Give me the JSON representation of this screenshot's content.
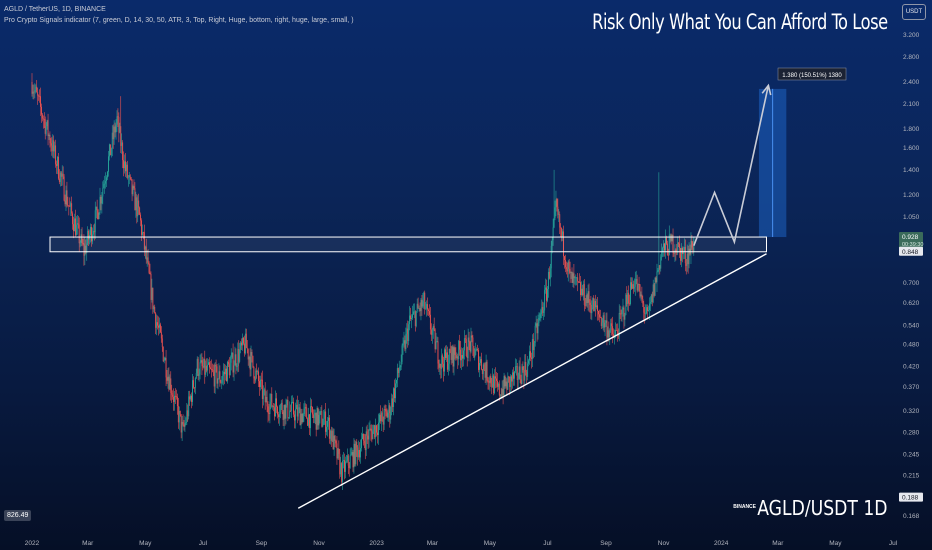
{
  "legend": {
    "symbol_line": "AGLD / TetherUS, 1D, BINANCE",
    "indicator_line": "Pro Crypto Signals indicator (7, green, D, 14, 30, 50, ATR, 3, Top, Right, Huge, bottom, right, huge, large, small, )"
  },
  "caption": "Risk Only What You Can Afford To Lose",
  "currency_button": "USDT",
  "exchange": "BINANCE",
  "symbol_tag": "AGLD/USDT 1D",
  "volume_badge": "826.49",
  "colors": {
    "up": "#26a69a",
    "down": "#ef5350",
    "trendline": "#ffffff",
    "resistance_box": "#ffffff",
    "projection": "#c9ccd6",
    "target_zone": "#1e6fd9"
  },
  "chart_data": {
    "type": "candlestick",
    "scale": "log",
    "y_ticks": [
      3.2,
      2.8,
      2.4,
      2.1,
      1.8,
      1.6,
      1.4,
      1.2,
      1.05,
      0.928,
      0.848,
      0.7,
      0.62,
      0.54,
      0.48,
      0.42,
      0.37,
      0.32,
      0.28,
      0.245,
      0.215,
      0.188,
      0.168
    ],
    "y_tick_labels": [
      "3.200",
      "2.800",
      "2.400",
      "2.100",
      "1.800",
      "1.600",
      "1.400",
      "1.200",
      "1.050",
      "0.928",
      "0.848",
      "0.700",
      "0.620",
      "0.540",
      "0.480",
      "0.420",
      "0.370",
      "0.320",
      "0.280",
      "0.245",
      "0.215",
      "0.188",
      "0.168"
    ],
    "highlighted_prices": [
      {
        "label": "0.928",
        "sub": "00:39:30",
        "style": "green"
      },
      {
        "label": "0.848",
        "style": "light"
      },
      {
        "label": "0.188",
        "style": "light"
      }
    ],
    "x_labels": [
      "2022",
      "Mar",
      "May",
      "Jul",
      "Sep",
      "Nov",
      "2023",
      "Mar",
      "May",
      "Jul",
      "Sep",
      "Nov",
      "2024",
      "Mar",
      "May",
      "Jul"
    ],
    "y_range": [
      0.16,
      3.4
    ],
    "price_path": [
      [
        "2022-01-01",
        2.4
      ],
      [
        "2022-01-20",
        1.7
      ],
      [
        "2022-02-10",
        1.1
      ],
      [
        "2022-02-25",
        0.85
      ],
      [
        "2022-03-10",
        1.05
      ],
      [
        "2022-04-01",
        1.9
      ],
      [
        "2022-04-10",
        1.4
      ],
      [
        "2022-04-25",
        1.05
      ],
      [
        "2022-05-10",
        0.6
      ],
      [
        "2022-05-25",
        0.4
      ],
      [
        "2022-06-10",
        0.28
      ],
      [
        "2022-06-25",
        0.42
      ],
      [
        "2022-07-20",
        0.39
      ],
      [
        "2022-08-15",
        0.48
      ],
      [
        "2022-09-05",
        0.34
      ],
      [
        "2022-10-01",
        0.32
      ],
      [
        "2022-11-10",
        0.3
      ],
      [
        "2022-11-25",
        0.22
      ],
      [
        "2022-12-20",
        0.27
      ],
      [
        "2023-01-15",
        0.32
      ],
      [
        "2023-02-05",
        0.55
      ],
      [
        "2023-02-20",
        0.62
      ],
      [
        "2023-03-10",
        0.43
      ],
      [
        "2023-04-10",
        0.48
      ],
      [
        "2023-05-10",
        0.36
      ],
      [
        "2023-06-10",
        0.42
      ],
      [
        "2023-07-01",
        0.68
      ],
      [
        "2023-07-10",
        1.1
      ],
      [
        "2023-07-25",
        0.72
      ],
      [
        "2023-08-20",
        0.6
      ],
      [
        "2023-09-10",
        0.5
      ],
      [
        "2023-10-01",
        0.72
      ],
      [
        "2023-10-15",
        0.56
      ],
      [
        "2023-10-30",
        0.85
      ],
      [
        "2023-11-10",
        0.9
      ],
      [
        "2023-11-25",
        0.82
      ],
      [
        "2023-12-03",
        0.9
      ]
    ],
    "spikes": [
      [
        "2023-07-08",
        1.4
      ],
      [
        "2023-10-27",
        1.38
      ],
      [
        "2022-04-05",
        2.2
      ]
    ],
    "trendline": [
      [
        "2022-10-10",
        0.185
      ],
      [
        "2024-02-18",
        0.848
      ]
    ],
    "resistance_zone": {
      "x0": "2022-01-01",
      "x1": "2024-02-18",
      "low": 0.848,
      "high": 0.928
    },
    "projection": [
      [
        "2023-12-03",
        0.88
      ],
      [
        "2023-12-25",
        1.22
      ],
      [
        "2024-01-15",
        0.9
      ],
      [
        "2024-02-20",
        2.35
      ]
    ],
    "target_zone": {
      "x0": "2024-02-10",
      "x1": "2024-03-10",
      "low": 0.928,
      "high": 2.3
    },
    "target_label": "1.380 (150.51%) 1380"
  }
}
